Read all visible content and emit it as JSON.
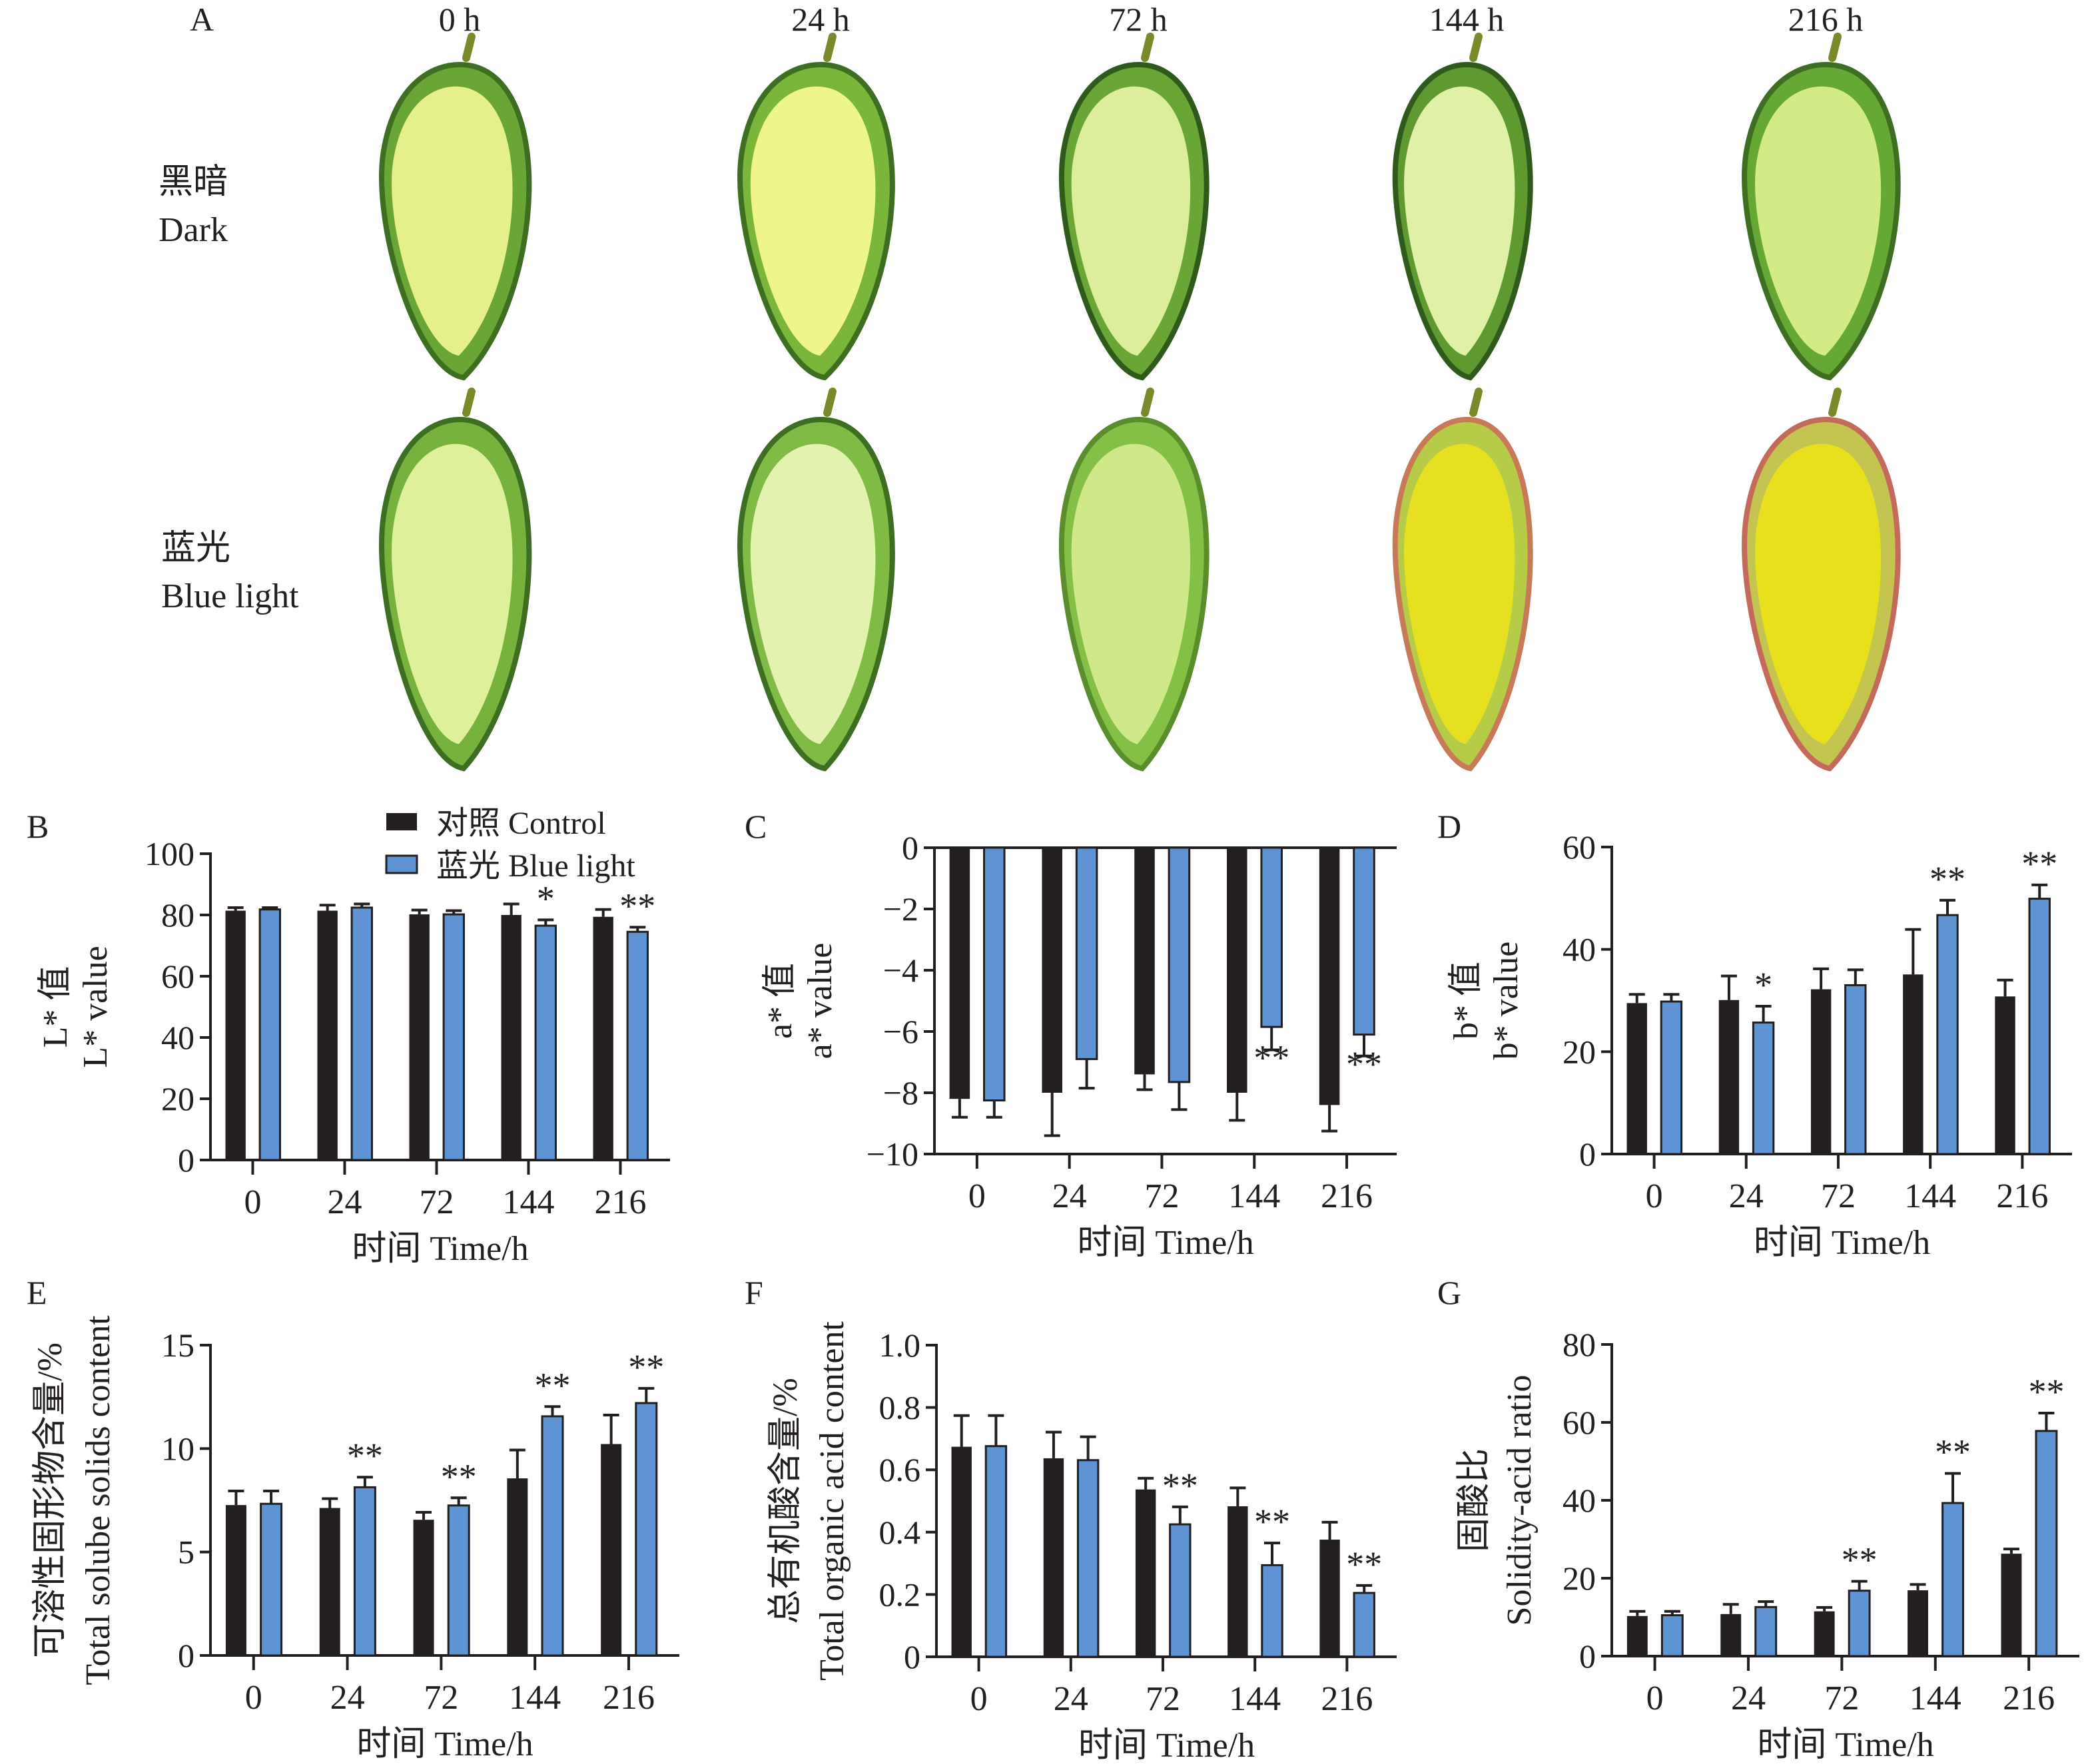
{
  "figure": {
    "colors": {
      "control": "#231f20",
      "blue_light": "#5f94d4",
      "axis": "#231f20"
    },
    "panel_a": {
      "label": "A",
      "time_headers": [
        "0 h",
        "24 h",
        "72 h",
        "144 h",
        "216 h"
      ],
      "rows": [
        {
          "label_cn": "黑暗",
          "label_en": "Dark",
          "fruits": [
            {
              "flesh": "#e6f08a",
              "rind": "#6aa636",
              "edge": "#3d6e22"
            },
            {
              "flesh": "#eef58a",
              "rind": "#7ab63a",
              "edge": "#3d6e22"
            },
            {
              "flesh": "#dcee9c",
              "rind": "#6aa636",
              "edge": "#2f5a1c"
            },
            {
              "flesh": "#e0f0a6",
              "rind": "#5e9a30",
              "edge": "#2f5a1c"
            },
            {
              "flesh": "#d2eb86",
              "rind": "#66a834",
              "edge": "#3d6e22"
            }
          ]
        },
        {
          "label_cn": "蓝光",
          "label_en": "Blue light",
          "fruits": [
            {
              "flesh": "#dff09a",
              "rind": "#76b23c",
              "edge": "#3d6e22"
            },
            {
              "flesh": "#e4f2b0",
              "rind": "#80bb46",
              "edge": "#3d6e22"
            },
            {
              "flesh": "#cfe98a",
              "rind": "#84c046",
              "edge": "#5a8e2c"
            },
            {
              "flesh": "#e6e020",
              "rind": "#b6cc48",
              "edge": "#c87a58"
            },
            {
              "flesh": "#e8e01c",
              "rind": "#c4c450",
              "edge": "#c46a5a"
            }
          ]
        }
      ]
    },
    "legend": {
      "control": "对照 Control",
      "blue_light": "蓝光 Blue light"
    }
  },
  "chart_data": [
    {
      "panel": "B",
      "type": "bar",
      "categories": [
        "0",
        "24",
        "72",
        "144",
        "216"
      ],
      "xlabel": "时间 Time/h",
      "ylabel": [
        "L* 值",
        "L* value"
      ],
      "ylim": [
        0,
        100
      ],
      "yticks": [
        0,
        20,
        40,
        60,
        80,
        100
      ],
      "ytick_labels": [
        "0",
        "20",
        "40",
        "60",
        "80",
        "100"
      ],
      "legend_position": "top-right",
      "series": [
        {
          "name": "对照 Control",
          "values": [
            81.4,
            81.4,
            80.2,
            80.0,
            79.4
          ],
          "errors": [
            1.0,
            1.8,
            1.4,
            3.6,
            2.4
          ]
        },
        {
          "name": "蓝光 Blue light",
          "values": [
            81.8,
            82.4,
            80.2,
            76.5,
            74.5
          ],
          "errors": [
            0.6,
            1.2,
            1.2,
            1.9,
            1.5
          ]
        }
      ],
      "significance": [
        "",
        "",
        "",
        "*",
        "**"
      ],
      "grid": false
    },
    {
      "panel": "C",
      "type": "bar",
      "categories": [
        "0",
        "24",
        "72",
        "144",
        "216"
      ],
      "xlabel": "时间 Time/h",
      "ylabel": [
        "a* 值",
        "a* value"
      ],
      "ylim": [
        -10,
        0
      ],
      "yticks": [
        0,
        -2,
        -4,
        -6,
        -8,
        -10
      ],
      "ytick_labels": [
        "0",
        "−2",
        "−4",
        "−6",
        "−8",
        "−10"
      ],
      "series": [
        {
          "name": "对照 Control",
          "values": [
            -8.2,
            -8.0,
            -7.4,
            -8.0,
            -8.4
          ],
          "errors": [
            0.6,
            1.4,
            0.5,
            0.9,
            0.85
          ]
        },
        {
          "name": "蓝光 Blue light",
          "values": [
            -8.25,
            -6.9,
            -7.65,
            -5.85,
            -6.1
          ],
          "errors": [
            0.55,
            0.95,
            0.9,
            0.75,
            0.7
          ]
        }
      ],
      "significance": [
        "",
        "",
        "",
        "**",
        "**"
      ],
      "grid": false
    },
    {
      "panel": "D",
      "type": "bar",
      "categories": [
        "0",
        "24",
        "72",
        "144",
        "216"
      ],
      "xlabel": "时间 Time/h",
      "ylabel": [
        "b* 值",
        "b* value"
      ],
      "ylim": [
        0,
        60
      ],
      "yticks": [
        0,
        20,
        40,
        60
      ],
      "ytick_labels": [
        "0",
        "20",
        "40",
        "60"
      ],
      "series": [
        {
          "name": "对照 Control",
          "values": [
            29.5,
            30.1,
            32.2,
            35.1,
            30.8
          ],
          "errors": [
            1.7,
            4.7,
            4.0,
            8.8,
            3.2
          ]
        },
        {
          "name": "蓝光 Blue light",
          "values": [
            29.8,
            25.7,
            33.0,
            46.7,
            49.9
          ],
          "errors": [
            1.4,
            3.2,
            3.0,
            2.9,
            2.7
          ]
        }
      ],
      "significance": [
        "",
        "*",
        "",
        "**",
        "**"
      ],
      "grid": false
    },
    {
      "panel": "E",
      "type": "bar",
      "categories": [
        "0",
        "24",
        "72",
        "144",
        "216"
      ],
      "xlabel": "时间 Time/h",
      "ylabel": [
        "可溶性固形物含量/%",
        "Total solube solids content"
      ],
      "ylim": [
        0,
        15
      ],
      "yticks": [
        0,
        5,
        10,
        15
      ],
      "ytick_labels": [
        "0",
        "5",
        "10",
        "15"
      ],
      "series": [
        {
          "name": "对照 Control",
          "values": [
            7.27,
            7.13,
            6.56,
            8.56,
            10.22
          ],
          "errors": [
            0.68,
            0.45,
            0.36,
            1.37,
            1.4
          ]
        },
        {
          "name": "蓝光 Blue light",
          "values": [
            7.33,
            8.13,
            7.25,
            11.56,
            12.2
          ],
          "errors": [
            0.62,
            0.49,
            0.37,
            0.47,
            0.71
          ]
        }
      ],
      "significance": [
        "",
        "**",
        "**",
        "**",
        "**"
      ],
      "grid": false
    },
    {
      "panel": "F",
      "type": "bar",
      "categories": [
        "0",
        "24",
        "72",
        "144",
        "216"
      ],
      "xlabel": "时间 Time/h",
      "ylabel": [
        "总有机酸含量/%",
        "Total organic acid content"
      ],
      "ylim": [
        0,
        1.0
      ],
      "yticks": [
        0,
        0.2,
        0.4,
        0.6,
        0.8,
        1.0
      ],
      "ytick_labels": [
        "0",
        "0.2",
        "0.4",
        "0.6",
        "0.8",
        "1.0"
      ],
      "series": [
        {
          "name": "对照 Control",
          "values": [
            0.674,
            0.637,
            0.537,
            0.483,
            0.376
          ],
          "errors": [
            0.1,
            0.084,
            0.036,
            0.059,
            0.056
          ]
        },
        {
          "name": "蓝光 Blue light",
          "values": [
            0.676,
            0.631,
            0.425,
            0.294,
            0.205
          ],
          "errors": [
            0.098,
            0.075,
            0.056,
            0.071,
            0.024
          ]
        }
      ],
      "significance": [
        "",
        "",
        "**",
        "**",
        "**"
      ],
      "grid": false
    },
    {
      "panel": "G",
      "type": "bar",
      "categories": [
        "0",
        "24",
        "72",
        "144",
        "216"
      ],
      "xlabel": "时间 Time/h",
      "ylabel": [
        "固酸比",
        "Solidity-acid ratio"
      ],
      "ylim": [
        0,
        80
      ],
      "yticks": [
        0,
        20,
        40,
        60,
        80
      ],
      "ytick_labels": [
        "0",
        "20",
        "40",
        "60",
        "80"
      ],
      "series": [
        {
          "name": "对照 Control",
          "values": [
            10.3,
            10.8,
            11.5,
            16.9,
            26.3
          ],
          "errors": [
            1.2,
            2.5,
            1.0,
            1.5,
            1.2
          ]
        },
        {
          "name": "蓝光 Blue light",
          "values": [
            10.5,
            12.6,
            16.8,
            39.3,
            57.8
          ],
          "errors": [
            1.0,
            1.4,
            2.4,
            7.6,
            4.6
          ]
        }
      ],
      "significance": [
        "",
        "",
        "**",
        "**",
        "**"
      ],
      "grid": false
    }
  ]
}
